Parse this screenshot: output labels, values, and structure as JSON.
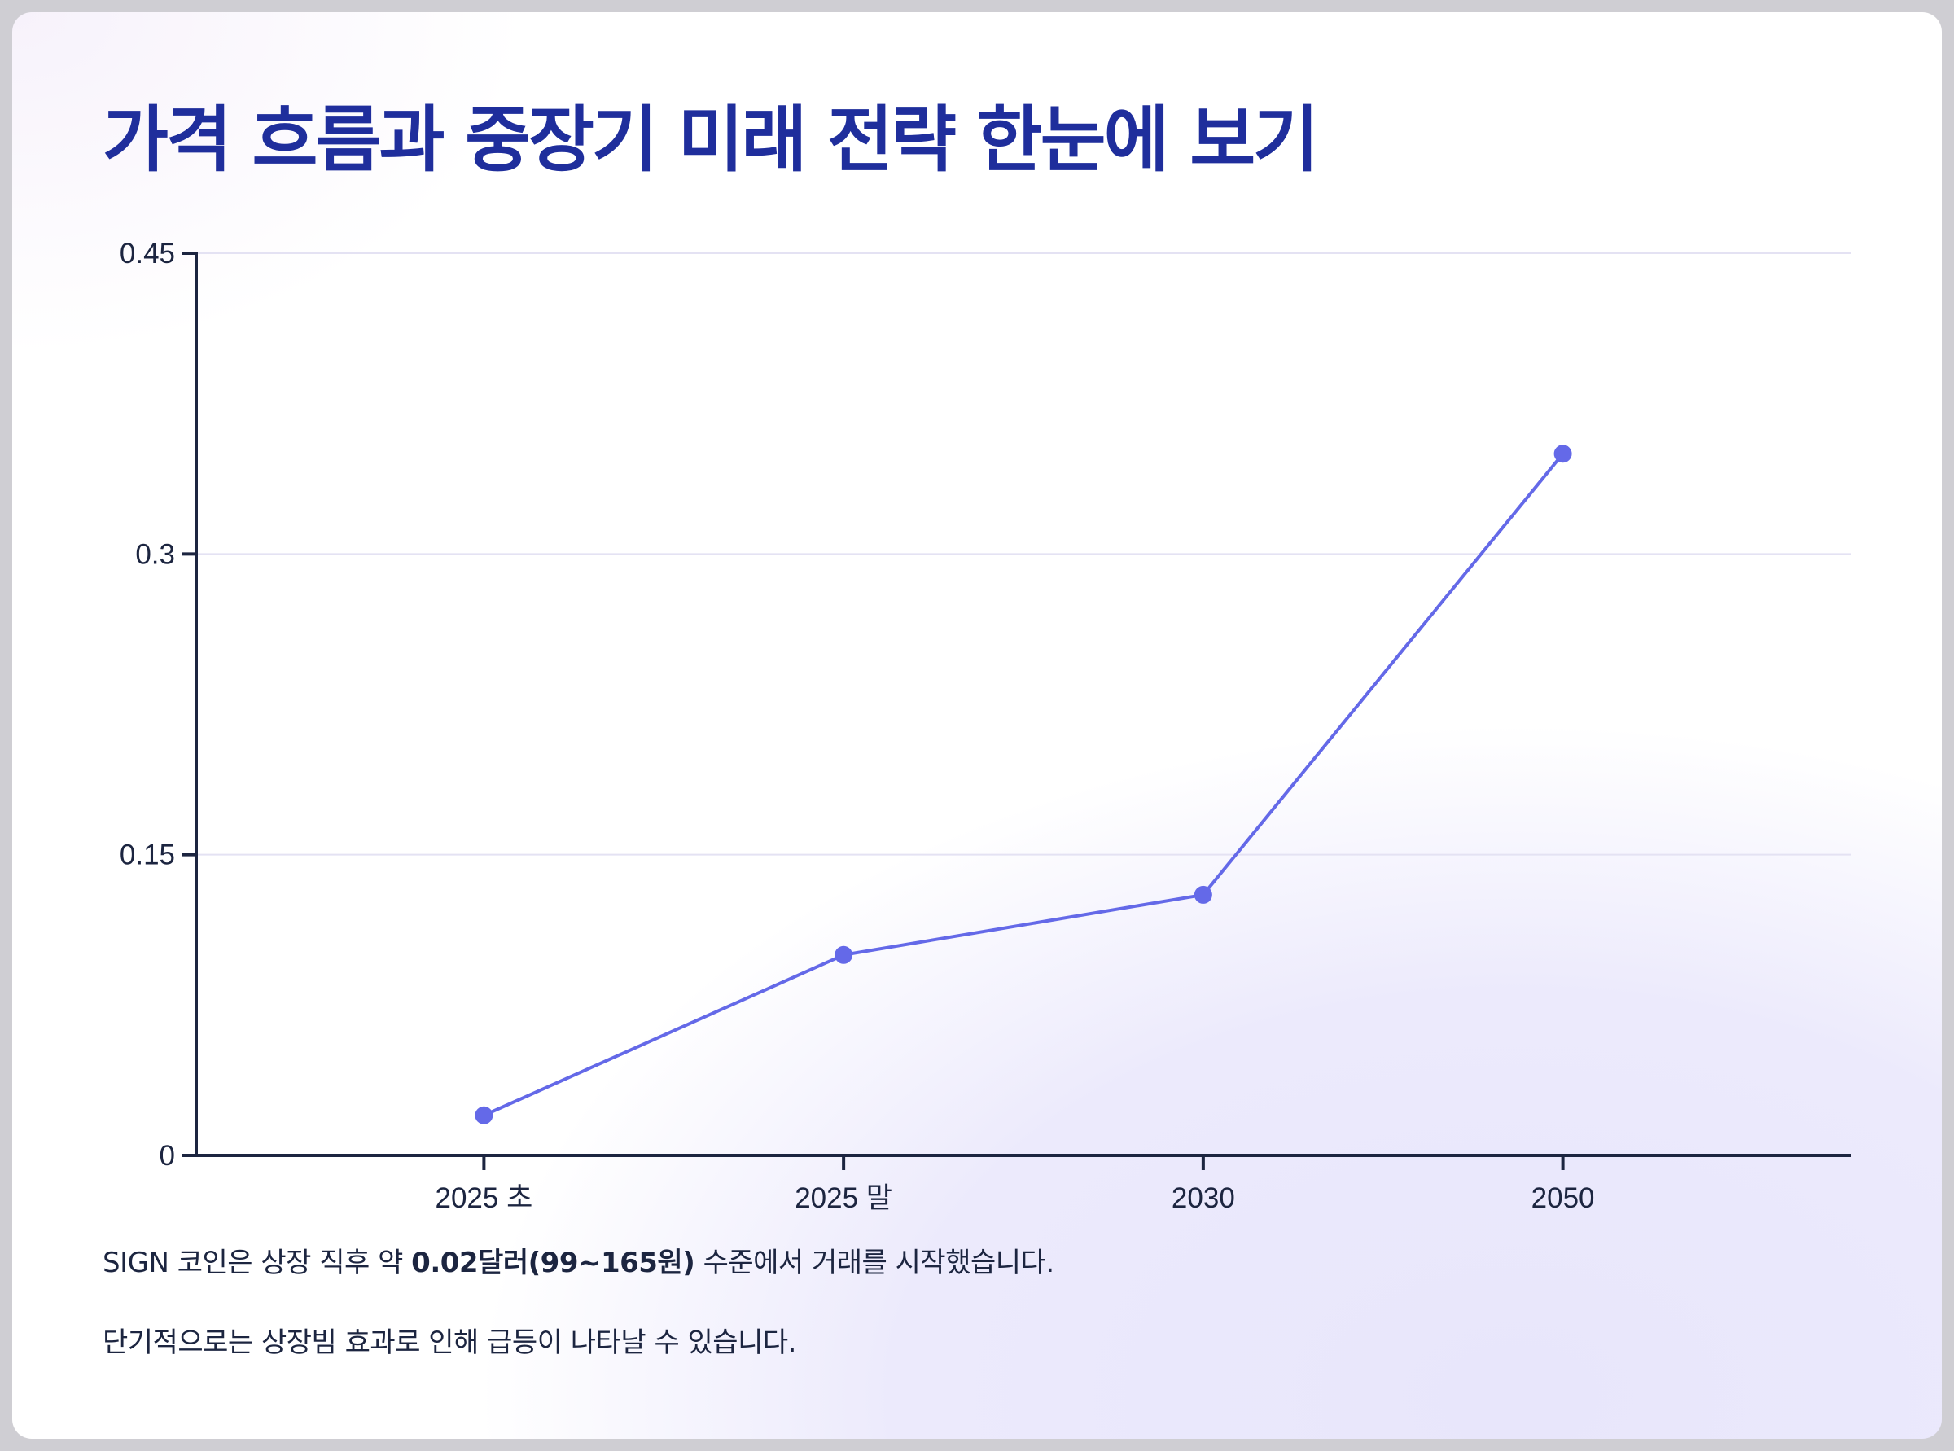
{
  "title": "가격 흐름과 중장기 미래 전략 한눈에 보기",
  "chart_data": {
    "type": "line",
    "categories": [
      "2025 초",
      "2025 말",
      "2030",
      "2050"
    ],
    "series": [
      {
        "values": [
          0.02,
          0.1,
          0.13,
          0.35
        ]
      }
    ],
    "yticks": [
      "0",
      "0.15",
      "0.3",
      "0.45"
    ],
    "ylim": [
      0,
      0.45
    ],
    "grid": true,
    "line_color": "#6469e8",
    "axis_color": "#1c2540",
    "grid_color": "#e4e2f3"
  },
  "notes": {
    "line1_prefix": "SIGN 코인은 상장 직후 약 ",
    "line1_bold": "0.02달러(99~165원)",
    "line1_suffix": " 수준에서 거래를 시작했습니다.",
    "line2": "단기적으로는 상장빔 효과로 인해 급등이 나타날 수 있습니다."
  }
}
